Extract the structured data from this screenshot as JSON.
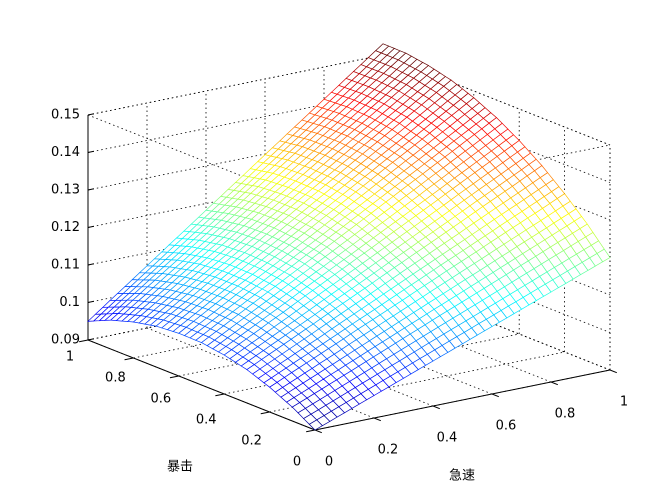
{
  "chart_data": {
    "type": "surface",
    "xlabel": "急速",
    "ylabel": "暴击",
    "x": [
      0,
      0.1,
      0.2,
      0.3,
      0.4,
      0.5,
      0.6,
      0.7,
      0.8,
      0.9,
      1
    ],
    "y": [
      0,
      0.1,
      0.2,
      0.3,
      0.4,
      0.5,
      0.6,
      0.7,
      0.8,
      0.9,
      1
    ],
    "z": [
      [
        0.09,
        0.093,
        0.096,
        0.099,
        0.102,
        0.105,
        0.108,
        0.111,
        0.114,
        0.117,
        0.12
      ],
      [
        0.0937,
        0.0969,
        0.1002,
        0.1035,
        0.1068,
        0.1101,
        0.1133,
        0.1166,
        0.1199,
        0.1232,
        0.1265
      ],
      [
        0.0966,
        0.1002,
        0.1037,
        0.1073,
        0.1108,
        0.1144,
        0.118,
        0.1215,
        0.1251,
        0.1286,
        0.1322
      ],
      [
        0.0989,
        0.1027,
        0.1065,
        0.1104,
        0.1142,
        0.1181,
        0.1219,
        0.1257,
        0.1296,
        0.1334,
        0.1373
      ],
      [
        0.1004,
        0.1045,
        0.1086,
        0.1128,
        0.1169,
        0.121,
        0.1251,
        0.1292,
        0.1334,
        0.1375,
        0.1416
      ],
      [
        0.1013,
        0.1057,
        0.1101,
        0.1145,
        0.1189,
        0.1233,
        0.1277,
        0.1321,
        0.1365,
        0.1409,
        0.1453
      ],
      [
        0.1014,
        0.1061,
        0.1108,
        0.1154,
        0.1201,
        0.1248,
        0.1295,
        0.1342,
        0.1388,
        0.1435,
        0.1482
      ],
      [
        0.1009,
        0.1058,
        0.1108,
        0.1157,
        0.1207,
        0.1257,
        0.1306,
        0.1356,
        0.1405,
        0.1455,
        0.1505
      ],
      [
        0.0996,
        0.1048,
        0.1101,
        0.1153,
        0.1206,
        0.1258,
        0.131,
        0.1363,
        0.1415,
        0.1468,
        0.152
      ],
      [
        0.0977,
        0.1032,
        0.1087,
        0.1142,
        0.1197,
        0.1253,
        0.1308,
        0.1363,
        0.1418,
        0.1473,
        0.1529
      ],
      [
        0.095,
        0.1008,
        0.1066,
        0.1124,
        0.1182,
        0.124,
        0.1298,
        0.1356,
        0.1414,
        0.1472,
        0.153
      ]
    ],
    "xlim": [
      0,
      1
    ],
    "ylim": [
      0,
      1
    ],
    "zlim": [
      0.09,
      0.15
    ],
    "xticks": [
      0,
      0.2,
      0.4,
      0.6,
      0.8,
      1
    ],
    "yticks": [
      0,
      0.2,
      0.4,
      0.6,
      0.8,
      1
    ],
    "zticks": [
      0.09,
      0.1,
      0.11,
      0.12,
      0.13,
      0.14,
      0.15
    ],
    "colormap": "jet",
    "grid": true
  }
}
